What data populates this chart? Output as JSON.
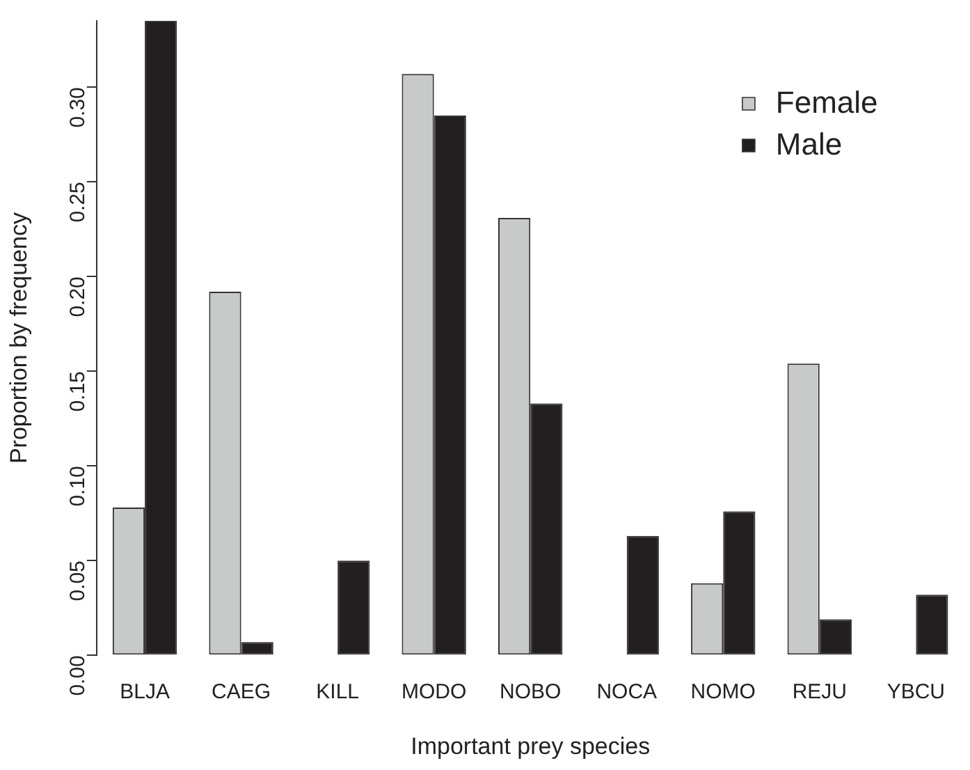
{
  "chart_data": {
    "type": "bar",
    "xlabel": "Important prey species",
    "ylabel": "Proportion by frequency",
    "categories": [
      "BLJA",
      "CAEG",
      "KILL",
      "MODO",
      "NOBO",
      "NOCA",
      "NOMO",
      "REJU",
      "YBCU"
    ],
    "series": [
      {
        "name": "Female",
        "color": "#c8c9c9",
        "values": [
          0.078,
          0.192,
          0,
          0.307,
          0.231,
          0,
          0.038,
          0.154,
          0
        ]
      },
      {
        "name": "Male",
        "color": "#231f20",
        "values": [
          0.335,
          0.007,
          0.05,
          0.285,
          0.133,
          0.063,
          0.076,
          0.019,
          0.032
        ]
      }
    ],
    "ylim": [
      0,
      0.335
    ],
    "yticks": [
      {
        "value": 0,
        "label": "0.00"
      },
      {
        "value": 0.05,
        "label": "0.05"
      },
      {
        "value": 0.1,
        "label": "0.10"
      },
      {
        "value": 0.15,
        "label": "0.15"
      },
      {
        "value": 0.2,
        "label": "0.20"
      },
      {
        "value": 0.25,
        "label": "0.25"
      },
      {
        "value": 0.3,
        "label": "0.30"
      }
    ],
    "grid": false,
    "legend": "top right"
  }
}
